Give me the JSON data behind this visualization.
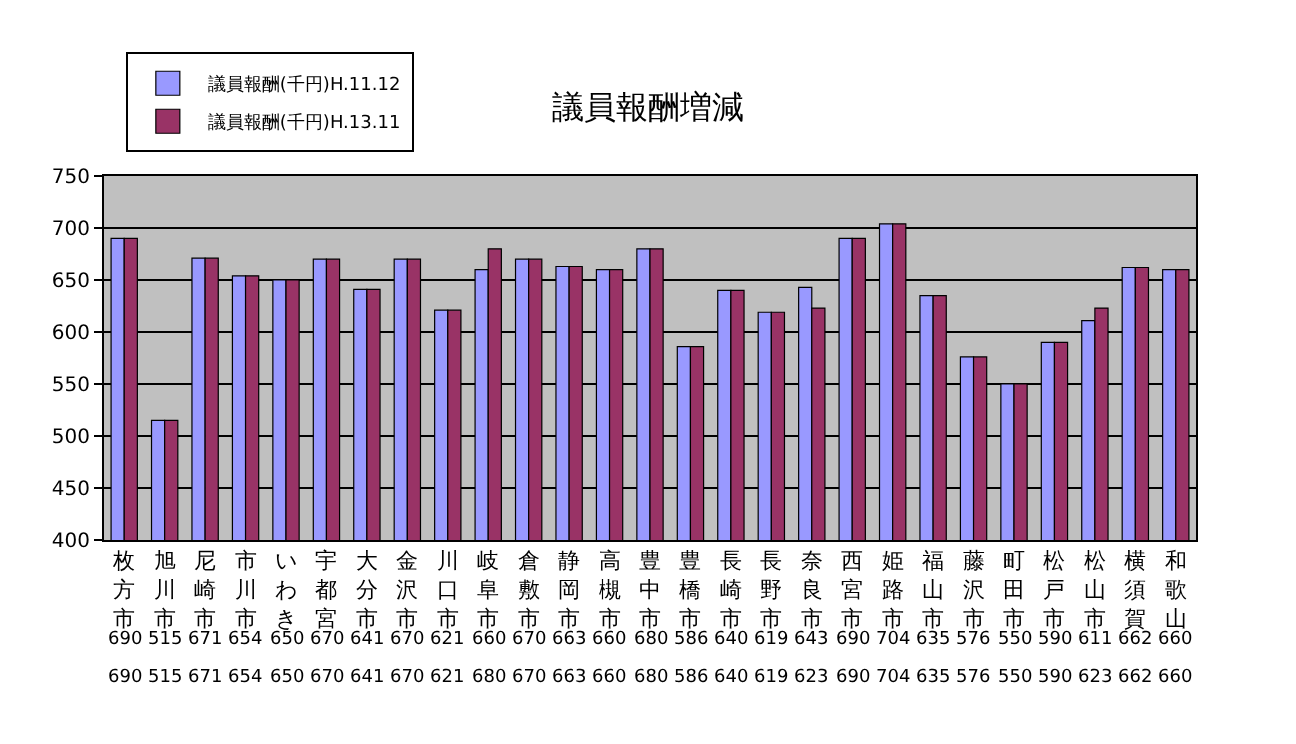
{
  "chart_data": {
    "type": "bar",
    "title": "議員報酬増減",
    "categories": [
      "枚方市",
      "旭川市",
      "尼崎市",
      "市川市",
      "いわき",
      "宇都宮",
      "大分市",
      "金沢市",
      "川口市",
      "岐阜市",
      "倉敷市",
      "静岡市",
      "高槻市",
      "豊中市",
      "豊橋市",
      "長崎市",
      "長野市",
      "奈良市",
      "西宮市",
      "姫路市",
      "福山市",
      "藤沢市",
      "町田市",
      "松戸市",
      "松山市",
      "横須賀",
      "和歌山"
    ],
    "series": [
      {
        "name": "議員報酬(千円)H.11.12",
        "color": "#9999ff",
        "values": [
          690,
          515,
          671,
          654,
          650,
          670,
          641,
          670,
          621,
          660,
          670,
          663,
          660,
          680,
          586,
          640,
          619,
          643,
          690,
          704,
          635,
          576,
          550,
          590,
          611,
          662,
          660
        ]
      },
      {
        "name": "議員報酬(千円)H.13.11",
        "color": "#993366",
        "values": [
          690,
          515,
          671,
          654,
          650,
          670,
          641,
          670,
          621,
          680,
          670,
          663,
          660,
          680,
          586,
          640,
          619,
          623,
          690,
          704,
          635,
          576,
          550,
          590,
          623,
          662,
          660
        ]
      }
    ],
    "ylim": [
      400,
      750
    ],
    "yticks": [
      400,
      450,
      500,
      550,
      600,
      650,
      700,
      750
    ],
    "grid": "y",
    "legend": "top left",
    "data_labels": true
  }
}
